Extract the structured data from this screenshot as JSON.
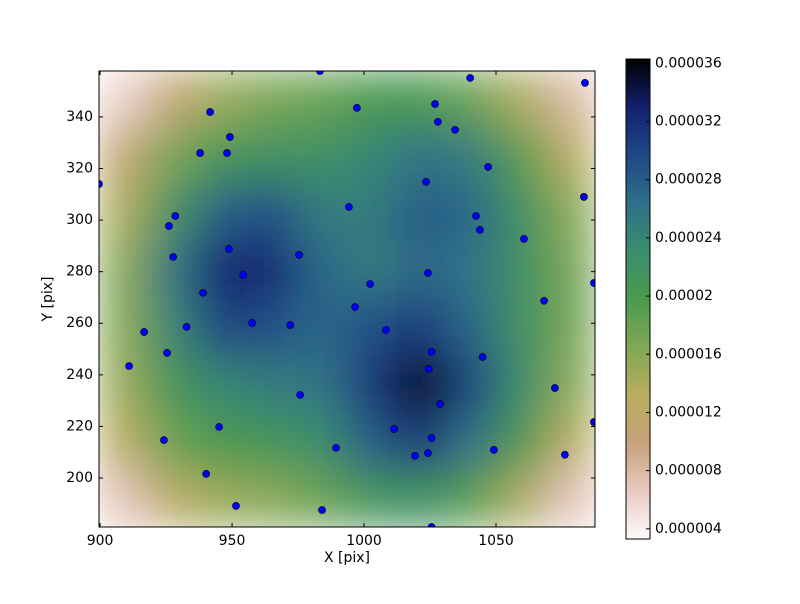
{
  "chart_data": {
    "type": "heatmap",
    "xlabel": "X [pix]",
    "ylabel": "Y [pix]",
    "xlim": [
      899.6,
      1087.5
    ],
    "ylim": [
      181,
      357.8
    ],
    "xticks": [
      900,
      950,
      1000,
      1050
    ],
    "yticks": [
      200,
      220,
      240,
      260,
      280,
      300,
      320,
      340
    ],
    "z": [
      [
        6e-06,
        1.1e-05,
        1.5e-05,
        1.7e-05,
        1.8e-05,
        2e-05,
        2e-05,
        1.8e-05,
        1.4e-05,
        8e-06
      ],
      [
        1.1e-05,
        1.7e-05,
        2.1e-05,
        2.2e-05,
        2.2e-05,
        2.4e-05,
        2.6e-05,
        2.5e-05,
        1.9e-05,
        1.3e-05
      ],
      [
        1.4e-05,
        2.2e-05,
        2.8e-05,
        2.9e-05,
        2.5e-05,
        2.5e-05,
        2.8e-05,
        2.7e-05,
        2.2e-05,
        1.6e-05
      ],
      [
        1.6e-05,
        2.6e-05,
        3.3e-05,
        3.2e-05,
        2.7e-05,
        2.5e-05,
        2.7e-05,
        2.6e-05,
        2.2e-05,
        1.7e-05
      ],
      [
        1.6e-05,
        2.4e-05,
        3e-05,
        2.9e-05,
        2.7e-05,
        2.9e-05,
        3.1e-05,
        2.7e-05,
        2.2e-05,
        1.7e-05
      ],
      [
        1.5e-05,
        2.1e-05,
        2.4e-05,
        2.5e-05,
        2.6e-05,
        3.1e-05,
        3.7e-05,
        3e-05,
        2.3e-05,
        1.6e-05
      ],
      [
        1.3e-05,
        1.8e-05,
        2e-05,
        2.1e-05,
        2.3e-05,
        2.8e-05,
        3.1e-05,
        2.6e-05,
        2e-05,
        1.3e-05
      ],
      [
        7e-06,
        1.3e-05,
        1.5e-05,
        1.6e-05,
        1.8e-05,
        2.1e-05,
        2.2e-05,
        1.9e-05,
        1.4e-05,
        7e-06
      ]
    ],
    "zlim": [
      3.3e-06,
      3.63e-05
    ],
    "zticks": [
      4e-06,
      8e-06,
      1.2e-05,
      1.6e-05,
      2e-05,
      2.4e-05,
      2.8e-05,
      3.2e-05,
      3.6e-05
    ],
    "colormap": [
      "#fdfbfb",
      "#e8c9c2",
      "#c6a27a",
      "#b9ad60",
      "#7fa855",
      "#4a9a4e",
      "#3b8d6e",
      "#2e6f8a",
      "#1f4885",
      "#13206e",
      "#000000"
    ],
    "series": [
      {
        "type": "scatter",
        "color": "#0000ff",
        "x": [
          983.3,
          1040.2,
          1083.7,
          997.3,
          1026.9,
          941.7,
          1028.0,
          1034.5,
          949.2,
          937.9,
          948.1,
          1047.0,
          1023.5,
          899.6,
          1083.3,
          994.3,
          928.5,
          1042.4,
          926.1,
          1043.9,
          1060.6,
          948.8,
          975.4,
          927.7,
          1024.2,
          954.2,
          1002.3,
          1087.1,
          939.0,
          1068.2,
          996.6,
          957.6,
          972.0,
          932.8,
          1008.3,
          916.7,
          925.4,
          1025.6,
          1044.9,
          911.0,
          1024.5,
          1072.3,
          975.8,
          1028.8,
          1087.1,
          945.1,
          1011.4,
          1025.6,
          924.2,
          989.4,
          1049.2,
          1024.2,
          1019.3,
          1076.1,
          940.2,
          951.5,
          984.1,
          1025.6
        ],
        "y": [
          357.8,
          355.1,
          353.2,
          343.5,
          345.0,
          341.9,
          338.1,
          335.0,
          332.2,
          326.0,
          326.0,
          320.6,
          314.8,
          314.0,
          309.0,
          305.1,
          301.6,
          301.6,
          297.7,
          296.2,
          292.7,
          288.8,
          286.5,
          285.7,
          279.5,
          278.7,
          275.2,
          275.6,
          271.8,
          268.7,
          266.3,
          260.1,
          259.3,
          258.6,
          257.4,
          256.6,
          248.5,
          248.9,
          246.9,
          243.4,
          242.3,
          234.9,
          232.2,
          228.7,
          221.7,
          219.8,
          219.0,
          215.5,
          214.7,
          211.7,
          210.9,
          209.7,
          208.6,
          209.0,
          201.6,
          189.2,
          187.6,
          181.0
        ]
      }
    ]
  }
}
